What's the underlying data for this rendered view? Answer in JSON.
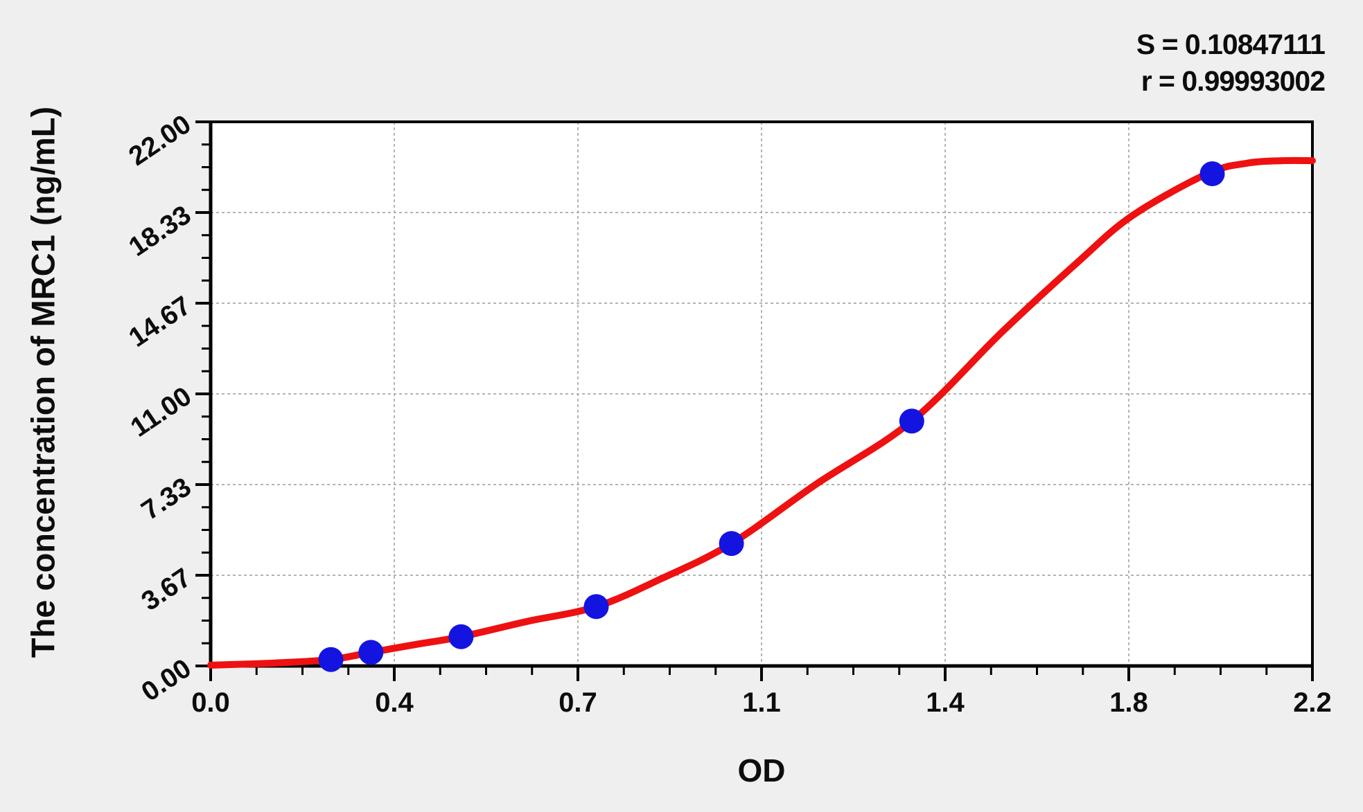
{
  "chart_data": {
    "type": "scatter",
    "title": "",
    "xlabel": "OD",
    "ylabel": "The concentration of MRC1 (ng/mL)",
    "xlim": [
      0,
      2.2
    ],
    "ylim": [
      0,
      22
    ],
    "x_tick_labels": [
      "0.0",
      "0.4",
      "0.7",
      "1.1",
      "1.4",
      "1.8",
      "2.2"
    ],
    "y_tick_labels": [
      "0.00",
      "3.67",
      "7.33",
      "11.00",
      "14.67",
      "18.33",
      "22.00"
    ],
    "minor_ticks_per_major": 3,
    "grid": "dashed lines at interior major ticks, both axes",
    "legend_position": "none",
    "annotations": [
      "S = 0.10847111",
      "r = 0.99993002"
    ],
    "series": [
      {
        "name": "standard-points",
        "plot": "scatter",
        "x": [
          0.24,
          0.32,
          0.5,
          0.77,
          1.04,
          1.4,
          2.0
        ],
        "y": [
          0.26,
          0.55,
          1.18,
          2.4,
          4.95,
          9.9,
          19.9
        ]
      },
      {
        "name": "fitted-curve",
        "plot": "line",
        "x": [
          0.0,
          0.13,
          0.24,
          0.32,
          0.41,
          0.5,
          0.63,
          0.77,
          0.9,
          1.04,
          1.21,
          1.4,
          1.58,
          1.73,
          1.84,
          1.99,
          2.07,
          2.14,
          2.2
        ],
        "y": [
          0.03,
          0.12,
          0.26,
          0.55,
          0.87,
          1.18,
          1.79,
          2.4,
          3.53,
          4.95,
          7.36,
          9.9,
          13.5,
          16.3,
          18.2,
          19.9,
          20.33,
          20.43,
          20.43
        ]
      }
    ],
    "colors": {
      "curve": "#ee1111",
      "points": "#1414e0",
      "grid": "#b3b3b3",
      "axis": "#000000",
      "plot_background": "#ffffff",
      "page_background": "#efefef",
      "text": "#0d0d0d"
    }
  }
}
